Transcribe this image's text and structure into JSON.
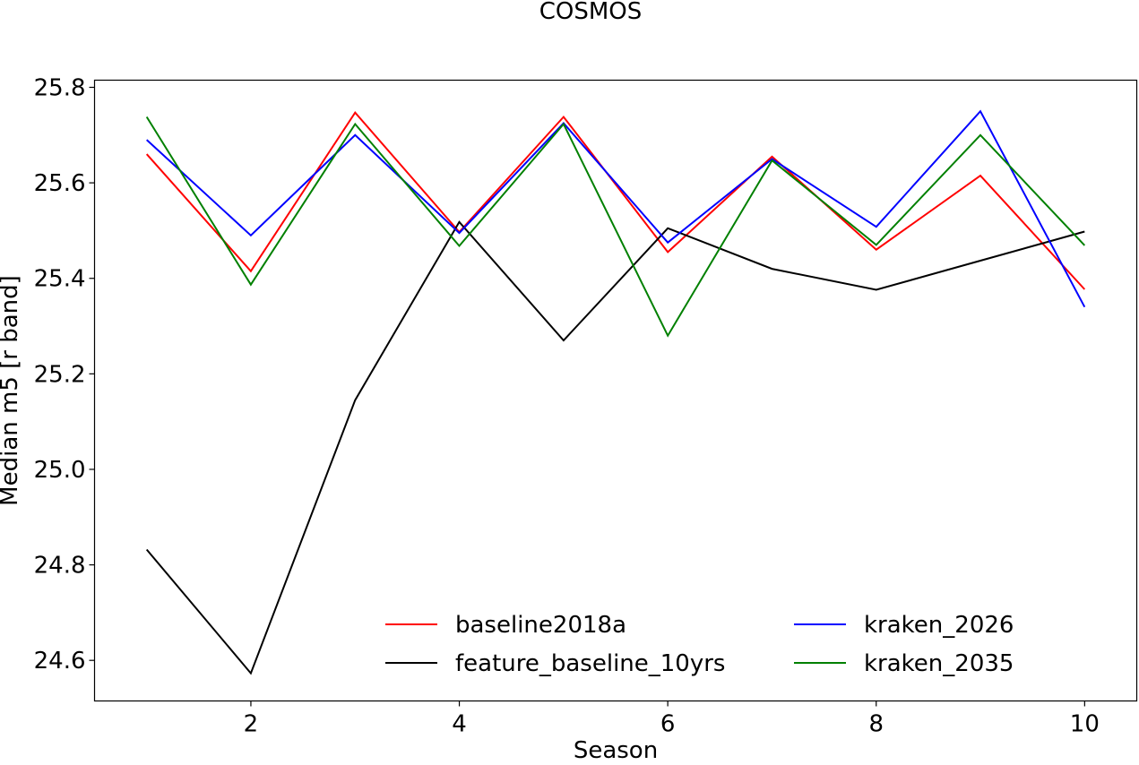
{
  "chart_data": {
    "type": "line",
    "title": "COSMOS",
    "xlabel": "Season",
    "ylabel": "Median m5 [r band]",
    "x": [
      1,
      2,
      3,
      4,
      5,
      6,
      7,
      8,
      9,
      10
    ],
    "xlim": [
      0.5,
      10.5
    ],
    "ylim": [
      24.515,
      25.815
    ],
    "xticks": [
      2,
      4,
      6,
      8,
      10
    ],
    "yticks": [
      24.6,
      24.8,
      25.0,
      25.2,
      25.4,
      25.6,
      25.8
    ],
    "xtick_labels": [
      "2",
      "4",
      "6",
      "8",
      "10"
    ],
    "ytick_labels": [
      "24.6",
      "24.8",
      "25.0",
      "25.2",
      "25.4",
      "25.6",
      "25.8"
    ],
    "grid": false,
    "legend_position": "bottom-center",
    "legend_columns": 2,
    "series": [
      {
        "name": "baseline2018a",
        "color": "#ff0000",
        "values": [
          25.66,
          25.415,
          25.747,
          25.497,
          25.738,
          25.455,
          25.655,
          25.46,
          25.615,
          25.377
        ]
      },
      {
        "name": "feature_baseline_10yrs",
        "color": "#000000",
        "values": [
          24.832,
          24.573,
          25.145,
          25.518,
          25.27,
          25.505,
          25.42,
          25.376,
          25.437,
          25.498
        ]
      },
      {
        "name": "kraken_2026",
        "color": "#0000ff",
        "values": [
          25.69,
          25.49,
          25.7,
          25.495,
          25.725,
          25.475,
          25.65,
          25.508,
          25.75,
          25.34
        ]
      },
      {
        "name": "kraken_2035",
        "color": "#008000",
        "values": [
          25.738,
          25.387,
          25.723,
          25.468,
          25.723,
          25.28,
          25.647,
          25.47,
          25.7,
          25.469
        ]
      }
    ]
  }
}
